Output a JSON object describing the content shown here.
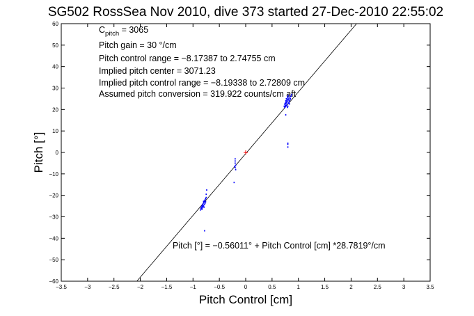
{
  "chart_data": {
    "type": "scatter",
    "title": "SG502 RossSea Nov 2010, dive 373 started 27-Dec-2010 22:55:02",
    "xlabel": "Pitch Control [cm]",
    "ylabel": "Pitch [°]",
    "xlim": [
      -3.5,
      3.5
    ],
    "ylim": [
      -60,
      60
    ],
    "xticks": [
      -3.5,
      -3,
      -2.5,
      -2,
      -1.5,
      -1,
      -0.5,
      0,
      0.5,
      1,
      1.5,
      2,
      2.5,
      3,
      3.5
    ],
    "yticks": [
      -60,
      -50,
      -40,
      -30,
      -20,
      -10,
      0,
      10,
      20,
      30,
      40,
      50,
      60
    ],
    "grid": false,
    "annotations": {
      "c_pitch_base": "C",
      "c_pitch_sub": "pitch",
      "c_pitch_value": " = 3065",
      "pitch_gain": "Pitch gain = 30 °/cm",
      "control_range": "Pitch control range = −8.17387 to 2.74755 cm",
      "implied_center": "Implied pitch center = 3071.23",
      "implied_range": "Implied pitch control range = −8.19338 to 2.72809 cm",
      "assumed_conversion": "Assumed pitch conversion = 319.922 counts/cm aft",
      "fit_equation": "Pitch [°] = −0.56011° + Pitch Control [cm] *28.7819°/cm"
    },
    "fit_line": {
      "intercept": -0.56011,
      "slope": 28.7819,
      "color": "#000000"
    },
    "center_marker": {
      "x": 0,
      "y": 0,
      "color": "#ff0000"
    },
    "series": [
      {
        "color": "#0000ff",
        "points": [
          [
            -0.85,
            -26
          ],
          [
            -0.84,
            -25.5
          ],
          [
            -0.83,
            -25
          ],
          [
            -0.83,
            -26.5
          ],
          [
            -0.82,
            -24.5
          ],
          [
            -0.82,
            -25.8
          ],
          [
            -0.81,
            -24
          ],
          [
            -0.81,
            -25.2
          ],
          [
            -0.8,
            -23.5
          ],
          [
            -0.8,
            -24.8
          ],
          [
            -0.79,
            -23
          ],
          [
            -0.79,
            -25.5
          ],
          [
            -0.78,
            -22.5
          ],
          [
            -0.78,
            -24.2
          ],
          [
            -0.77,
            -22
          ],
          [
            -0.77,
            -23.6
          ],
          [
            -0.76,
            -21.5
          ],
          [
            -0.76,
            -23
          ],
          [
            -0.86,
            -26.8
          ],
          [
            -0.84,
            -26.2
          ],
          [
            -0.8,
            -22.8
          ],
          [
            -0.75,
            -21
          ],
          [
            -0.75,
            -19.5
          ],
          [
            -0.74,
            -17.5
          ],
          [
            -0.78,
            -36.5
          ],
          [
            -0.2,
            -3
          ],
          [
            -0.2,
            -4
          ],
          [
            -0.2,
            -5
          ],
          [
            -0.19,
            -6
          ],
          [
            -0.2,
            -7
          ],
          [
            -0.19,
            -8
          ],
          [
            -0.21,
            -6.5
          ],
          [
            -0.22,
            -14
          ],
          [
            0.73,
            21.5
          ],
          [
            0.74,
            22.5
          ],
          [
            0.74,
            21
          ],
          [
            0.75,
            23
          ],
          [
            0.75,
            22
          ],
          [
            0.76,
            24
          ],
          [
            0.76,
            22.8
          ],
          [
            0.77,
            23.5
          ],
          [
            0.77,
            25
          ],
          [
            0.78,
            24.2
          ],
          [
            0.78,
            22.2
          ],
          [
            0.79,
            24.8
          ],
          [
            0.79,
            26
          ],
          [
            0.8,
            25.5
          ],
          [
            0.8,
            23.8
          ],
          [
            0.81,
            24.5
          ],
          [
            0.81,
            26.5
          ],
          [
            0.82,
            25.2
          ],
          [
            0.82,
            23.2
          ],
          [
            0.83,
            24
          ],
          [
            0.83,
            22.6
          ],
          [
            0.84,
            25.8
          ],
          [
            0.84,
            24.6
          ],
          [
            0.85,
            25
          ],
          [
            0.86,
            26.2
          ],
          [
            0.87,
            27
          ],
          [
            0.75,
            21.3
          ],
          [
            0.77,
            21.8
          ],
          [
            0.8,
            21.5
          ],
          [
            0.78,
            23.1
          ],
          [
            0.81,
            22.9
          ],
          [
            0.79,
            21
          ],
          [
            0.76,
            17.5
          ],
          [
            0.8,
            2.5
          ],
          [
            0.8,
            3.8
          ],
          [
            0.8,
            4.3
          ]
        ]
      }
    ]
  }
}
